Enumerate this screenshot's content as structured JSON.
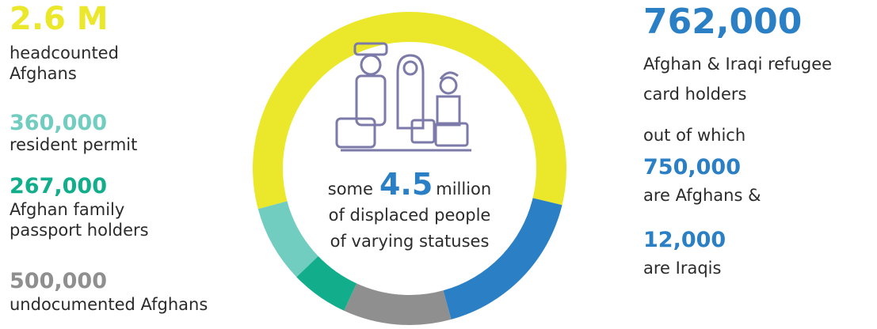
{
  "chart_data": {
    "type": "donut",
    "values": [
      2600000,
      762000,
      500000,
      267000,
      360000
    ],
    "value_labels": [
      "2.6 M",
      "762,000",
      "500,000",
      "267,000",
      "360,000"
    ],
    "descriptions": [
      [
        "headcounted",
        "Afghans"
      ],
      [
        "Afghan & Iraqi refugee",
        "card holders"
      ],
      [
        "undocumented Afghans"
      ],
      [
        "Afghan family",
        "passport holders"
      ],
      [
        "resident permit"
      ]
    ],
    "colors": [
      "#ebe72b",
      "#2a7fc5",
      "#8f8f8f",
      "#12ae8c",
      "#70cdbf"
    ],
    "center_text": {
      "before": "some",
      "value": 4.5,
      "after": "million",
      "lines": [
        "of displaced people",
        "of varying statuses"
      ]
    },
    "breakdown": {
      "intro": "out of which",
      "items": [
        {
          "label": "750,000",
          "text": "are Afghans &"
        },
        {
          "label": "12,000",
          "text": "are Iraqis"
        }
      ]
    }
  }
}
